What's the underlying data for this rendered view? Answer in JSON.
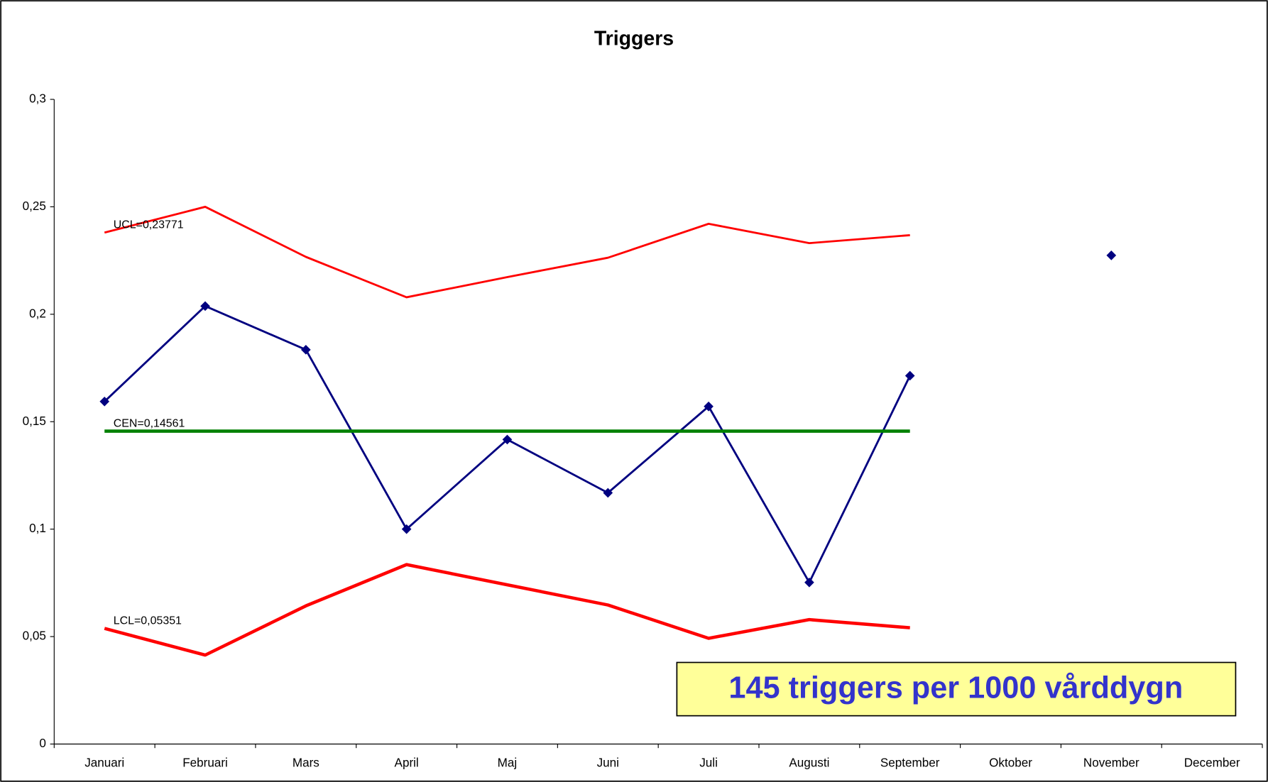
{
  "chart_data": {
    "type": "line",
    "title": "Triggers",
    "categories": [
      "Januari",
      "Februari",
      "Mars",
      "April",
      "Maj",
      "Juni",
      "Juli",
      "Augusti",
      "September",
      "Oktober",
      "November",
      "December"
    ],
    "series": [
      {
        "color": "#000080",
        "marker": "diamond",
        "values": [
          0.1594,
          0.2038,
          0.1835,
          0.1,
          0.1417,
          0.1169,
          0.1571,
          0.0752,
          0.1714,
          null,
          0.2274,
          null
        ]
      },
      {
        "color": "#ff0000",
        "label": "UCL=0,23771",
        "values": [
          0.238,
          0.25,
          0.2267,
          0.2079,
          0.2173,
          0.2263,
          0.2421,
          0.2331,
          0.2368,
          null,
          null,
          null
        ]
      },
      {
        "color": "#008000",
        "label": "CEN=0,14561",
        "values": [
          0.14561,
          0.14561,
          0.14561,
          0.14561,
          0.14561,
          0.14561,
          0.14561,
          0.14561,
          0.14561,
          null,
          null,
          null
        ]
      },
      {
        "color": "#ff0000",
        "label": "LCL=0,05351",
        "values": [
          0.0538,
          0.0414,
          0.0643,
          0.0835,
          0.0741,
          0.0647,
          0.0492,
          0.0579,
          0.0541,
          null,
          null,
          null
        ]
      }
    ],
    "ylim": [
      0,
      0.3
    ],
    "yticks": [
      0,
      {
        "value": 0.05,
        "label": "0,05"
      },
      {
        "value": 0.1,
        "label": "0,1"
      },
      {
        "value": 0.15,
        "label": "0,15"
      },
      {
        "value": 0.2,
        "label": "0,2"
      },
      {
        "value": 0.25,
        "label": "0,25"
      },
      {
        "value": 0.3,
        "label": "0,3"
      }
    ],
    "grid": false,
    "annotation": "145 triggers per 1000 vårddygn"
  }
}
